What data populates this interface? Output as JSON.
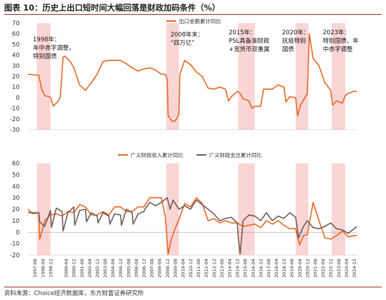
{
  "header": {
    "title": "图表 10：历史上出口短时间大幅回落是财政加码条件（%）"
  },
  "footer": {
    "source": "资料来源：Choice经济数据库，东方财富证券研究所"
  },
  "colors": {
    "export": "#e8651f",
    "revenue": "#e8651f",
    "expenditure": "#6e5b55",
    "shade": "#fbd5d5"
  },
  "chart_data": [
    {
      "type": "line",
      "title": "",
      "ylim": [
        -30,
        70
      ],
      "yticks": [
        -30,
        -20,
        -10,
        0,
        10,
        20,
        30,
        40,
        50,
        60,
        70
      ],
      "legend": "top-center",
      "series": [
        {
          "name": "出口金额累计同比",
          "points": [
            [
              "1997-01",
              22
            ],
            [
              "1997-12",
              21
            ],
            [
              "1998-03",
              8
            ],
            [
              "1998-06",
              2
            ],
            [
              "1998-12",
              0.5
            ],
            [
              "1999-03",
              -8
            ],
            [
              "1999-08",
              -3
            ],
            [
              "1999-10",
              0
            ],
            [
              "2000-01",
              38
            ],
            [
              "2000-03",
              39
            ],
            [
              "2000-09",
              33
            ],
            [
              "2000-12",
              28
            ],
            [
              "2001-06",
              12
            ],
            [
              "2001-12",
              7
            ],
            [
              "2002-06",
              14
            ],
            [
              "2002-12",
              22
            ],
            [
              "2003-06",
              34
            ],
            [
              "2003-12",
              35
            ],
            [
              "2004-06",
              35
            ],
            [
              "2004-12",
              35
            ],
            [
              "2005-06",
              32
            ],
            [
              "2005-12",
              28
            ],
            [
              "2006-06",
              25
            ],
            [
              "2006-12",
              27
            ],
            [
              "2007-06",
              28
            ],
            [
              "2007-12",
              26
            ],
            [
              "2008-06",
              22
            ],
            [
              "2008-10",
              22
            ],
            [
              "2008-12",
              17
            ],
            [
              "2009-01",
              -17
            ],
            [
              "2009-05",
              -22
            ],
            [
              "2009-08",
              -22
            ],
            [
              "2009-12",
              -16
            ],
            [
              "2010-01",
              22
            ],
            [
              "2010-06",
              35
            ],
            [
              "2010-12",
              31
            ],
            [
              "2011-06",
              24
            ],
            [
              "2011-12",
              20
            ],
            [
              "2012-06",
              9
            ],
            [
              "2012-12",
              8
            ],
            [
              "2013-06",
              10
            ],
            [
              "2013-12",
              8
            ],
            [
              "2014-03",
              -3
            ],
            [
              "2014-06",
              1
            ],
            [
              "2014-12",
              6
            ],
            [
              "2015-03",
              4
            ],
            [
              "2015-06",
              -1
            ],
            [
              "2015-12",
              -3
            ],
            [
              "2016-03",
              -10
            ],
            [
              "2016-06",
              -8
            ],
            [
              "2016-12",
              -8
            ],
            [
              "2017-03",
              8
            ],
            [
              "2017-06",
              8
            ],
            [
              "2017-12",
              8
            ],
            [
              "2018-06",
              12
            ],
            [
              "2018-12",
              10
            ],
            [
              "2019-02",
              -4
            ],
            [
              "2019-06",
              1
            ],
            [
              "2019-12",
              0
            ],
            [
              "2020-02",
              -17
            ],
            [
              "2020-05",
              -7
            ],
            [
              "2020-12",
              4
            ],
            [
              "2021-02",
              60
            ],
            [
              "2021-06",
              37
            ],
            [
              "2021-12",
              30
            ],
            [
              "2022-06",
              14
            ],
            [
              "2022-12",
              7
            ],
            [
              "2023-02",
              -7
            ],
            [
              "2023-06",
              -3
            ],
            [
              "2023-12",
              -5
            ],
            [
              "2024-03",
              2
            ],
            [
              "2024-06",
              4
            ],
            [
              "2024-12",
              6
            ],
            [
              "2025-03",
              6
            ]
          ]
        }
      ],
      "annotations": [
        "1998年：\n年中赤字调整，\n特别国债",
        "2008年末：\n“四万亿”",
        "2015年：\nPSL具备准财政\n+宽货币双重属",
        "2020年：\n抗疫特别\n国债",
        "2023年：\n特别国债、年\n中赤字调整"
      ],
      "shaded_periods": [
        [
          "1997-10",
          "1998-12"
        ],
        [
          "2008-11",
          "2009-12"
        ],
        [
          "2015-01",
          "2016-06"
        ],
        [
          "2019-12",
          "2021-01"
        ],
        [
          "2023-01",
          "2024-03"
        ]
      ]
    },
    {
      "type": "line",
      "title": "",
      "ylim": [
        -20,
        60
      ],
      "yticks": [
        -20,
        -10,
        0,
        10,
        20,
        30,
        40,
        50,
        60
      ],
      "legend": "top-center",
      "series": [
        {
          "name": "广义财政收入累计同比",
          "points": [
            [
              "1997-01",
              20
            ],
            [
              "1997-06",
              16
            ],
            [
              "1997-12",
              17
            ],
            [
              "1998-01",
              -6
            ],
            [
              "1998-03",
              0
            ],
            [
              "1998-06",
              10
            ],
            [
              "1998-12",
              15
            ],
            [
              "1999-06",
              16
            ],
            [
              "1999-12",
              14
            ],
            [
              "2000-06",
              18
            ],
            [
              "2000-12",
              17
            ],
            [
              "2001-06",
              24
            ],
            [
              "2001-12",
              22
            ],
            [
              "2002-06",
              15
            ],
            [
              "2002-12",
              15
            ],
            [
              "2003-06",
              18
            ],
            [
              "2003-12",
              15
            ],
            [
              "2004-06",
              22
            ],
            [
              "2004-12",
              22
            ],
            [
              "2005-06",
              18
            ],
            [
              "2005-12",
              18
            ],
            [
              "2006-06",
              22
            ],
            [
              "2006-12",
              22
            ],
            [
              "2007-06",
              30
            ],
            [
              "2007-12",
              30
            ],
            [
              "2008-06",
              30
            ],
            [
              "2008-10",
              14
            ],
            [
              "2009-01",
              -19
            ],
            [
              "2009-04",
              -7
            ],
            [
              "2009-08",
              3
            ],
            [
              "2009-12",
              11
            ],
            [
              "2010-06",
              25
            ],
            [
              "2010-12",
              22
            ],
            [
              "2011-06",
              30
            ],
            [
              "2011-12",
              25
            ],
            [
              "2012-06",
              10
            ],
            [
              "2012-12",
              12
            ],
            [
              "2013-06",
              8
            ],
            [
              "2013-12",
              10
            ],
            [
              "2014-06",
              8
            ],
            [
              "2014-12",
              8
            ],
            [
              "2015-06",
              5
            ],
            [
              "2015-12",
              6
            ],
            [
              "2016-06",
              7
            ],
            [
              "2016-12",
              4
            ],
            [
              "2017-06",
              10
            ],
            [
              "2017-12",
              7
            ],
            [
              "2018-06",
              10
            ],
            [
              "2018-12",
              6
            ],
            [
              "2019-06",
              3
            ],
            [
              "2019-12",
              3
            ],
            [
              "2020-04",
              -11
            ],
            [
              "2020-08",
              -3
            ],
            [
              "2020-12",
              -2
            ],
            [
              "2021-06",
              26
            ],
            [
              "2021-12",
              10
            ],
            [
              "2022-06",
              -5
            ],
            [
              "2022-12",
              -6
            ],
            [
              "2023-06",
              -3
            ],
            [
              "2023-12",
              1
            ],
            [
              "2024-06",
              -4
            ],
            [
              "2024-12",
              -3
            ],
            [
              "2025-03",
              -3
            ]
          ]
        },
        {
          "name": "广义财政支出累计同比",
          "points": [
            [
              "1997-01",
              17
            ],
            [
              "1997-12",
              17
            ],
            [
              "1998-01",
              9
            ],
            [
              "1998-06",
              5
            ],
            [
              "1998-12",
              19
            ],
            [
              "1999-01",
              4
            ],
            [
              "1999-06",
              21
            ],
            [
              "1999-12",
              18
            ],
            [
              "2000-01",
              1
            ],
            [
              "2000-06",
              17
            ],
            [
              "2000-12",
              22
            ],
            [
              "2001-01",
              6
            ],
            [
              "2001-06",
              19
            ],
            [
              "2001-12",
              20
            ],
            [
              "2002-01",
              9
            ],
            [
              "2002-06",
              17
            ],
            [
              "2002-12",
              14
            ],
            [
              "2003-01",
              8
            ],
            [
              "2003-06",
              17
            ],
            [
              "2003-12",
              14
            ],
            [
              "2004-01",
              7
            ],
            [
              "2004-06",
              16
            ],
            [
              "2004-12",
              15
            ],
            [
              "2005-01",
              6
            ],
            [
              "2005-06",
              20
            ],
            [
              "2005-12",
              17
            ],
            [
              "2006-01",
              7
            ],
            [
              "2006-06",
              16
            ],
            [
              "2006-12",
              18
            ],
            [
              "2007-01",
              20
            ],
            [
              "2007-06",
              26
            ],
            [
              "2007-12",
              23
            ],
            [
              "2008-06",
              26
            ],
            [
              "2008-12",
              30
            ],
            [
              "2009-03",
              20
            ],
            [
              "2009-06",
              28
            ],
            [
              "2009-12",
              20
            ],
            [
              "2010-06",
              23
            ],
            [
              "2010-12",
              20
            ],
            [
              "2011-06",
              28
            ],
            [
              "2011-12",
              24
            ],
            [
              "2012-06",
              20
            ],
            [
              "2012-12",
              16
            ],
            [
              "2013-06",
              10
            ],
            [
              "2013-12",
              12
            ],
            [
              "2014-06",
              13
            ],
            [
              "2014-12",
              8
            ],
            [
              "2015-01",
              -5
            ],
            [
              "2015-03",
              -19
            ],
            [
              "2015-06",
              10
            ],
            [
              "2015-12",
              15
            ],
            [
              "2016-06",
              14
            ],
            [
              "2016-12",
              10
            ],
            [
              "2017-06",
              17
            ],
            [
              "2017-12",
              10
            ],
            [
              "2018-06",
              14
            ],
            [
              "2018-12",
              12
            ],
            [
              "2019-06",
              17
            ],
            [
              "2019-12",
              13
            ],
            [
              "2020-03",
              -5
            ],
            [
              "2020-08",
              5
            ],
            [
              "2020-12",
              10
            ],
            [
              "2021-06",
              4
            ],
            [
              "2021-12",
              3
            ],
            [
              "2022-06",
              5
            ],
            [
              "2022-12",
              8
            ],
            [
              "2023-06",
              3
            ],
            [
              "2023-12",
              2
            ],
            [
              "2024-06",
              -1
            ],
            [
              "2024-12",
              3
            ],
            [
              "2025-03",
              5
            ]
          ]
        }
      ],
      "xticks": [
        "1997-08",
        "1998-04",
        "1998-12",
        "2000-04",
        "2000-12",
        "2001-08",
        "2002-04",
        "2002-12",
        "2003-08",
        "2004-04",
        "2004-12",
        "2005-08",
        "2006-04",
        "2006-12",
        "2007-08",
        "2008-04",
        "2008-12",
        "2009-08",
        "2010-04",
        "2010-12",
        "2011-08",
        "2012-04",
        "2012-12",
        "2013-08",
        "2014-04",
        "2014-12",
        "2015-08",
        "2016-04",
        "2016-12",
        "2017-08",
        "2018-04",
        "2018-12",
        "2019-08",
        "2020-04",
        "2020-12",
        "2021-08",
        "2022-04",
        "2022-12",
        "2023-08",
        "2024-04",
        "2024-12"
      ],
      "shaded_periods": [
        [
          "1997-10",
          "1998-12"
        ],
        [
          "2008-11",
          "2009-12"
        ],
        [
          "2015-01",
          "2016-06"
        ],
        [
          "2019-12",
          "2021-01"
        ],
        [
          "2023-01",
          "2024-03"
        ]
      ]
    }
  ]
}
